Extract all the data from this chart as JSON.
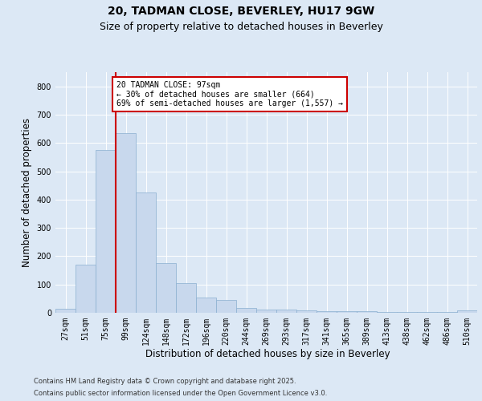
{
  "title_line1": "20, TADMAN CLOSE, BEVERLEY, HU17 9GW",
  "title_line2": "Size of property relative to detached houses in Beverley",
  "xlabel": "Distribution of detached houses by size in Beverley",
  "ylabel": "Number of detached properties",
  "bar_color": "#c8d8ed",
  "bar_edge_color": "#8aafd0",
  "background_color": "#dce8f5",
  "grid_color": "#ffffff",
  "categories": [
    "27sqm",
    "51sqm",
    "75sqm",
    "99sqm",
    "124sqm",
    "148sqm",
    "172sqm",
    "196sqm",
    "220sqm",
    "244sqm",
    "269sqm",
    "293sqm",
    "317sqm",
    "341sqm",
    "365sqm",
    "389sqm",
    "413sqm",
    "438sqm",
    "462sqm",
    "486sqm",
    "510sqm"
  ],
  "values": [
    15,
    170,
    575,
    635,
    425,
    175,
    105,
    55,
    45,
    18,
    12,
    10,
    8,
    5,
    5,
    5,
    4,
    3,
    3,
    2,
    8
  ],
  "ylim": [
    0,
    850
  ],
  "yticks": [
    0,
    100,
    200,
    300,
    400,
    500,
    600,
    700,
    800
  ],
  "vline_x_index": 3,
  "vline_color": "#cc0000",
  "annotation_text": "20 TADMAN CLOSE: 97sqm\n← 30% of detached houses are smaller (664)\n69% of semi-detached houses are larger (1,557) →",
  "annotation_box_facecolor": "#ffffff",
  "annotation_box_edgecolor": "#cc0000",
  "footer_line1": "Contains HM Land Registry data © Crown copyright and database right 2025.",
  "footer_line2": "Contains public sector information licensed under the Open Government Licence v3.0.",
  "title_fontsize": 10,
  "subtitle_fontsize": 9,
  "tick_fontsize": 7,
  "label_fontsize": 8.5,
  "ann_fontsize": 7,
  "footer_fontsize": 6
}
